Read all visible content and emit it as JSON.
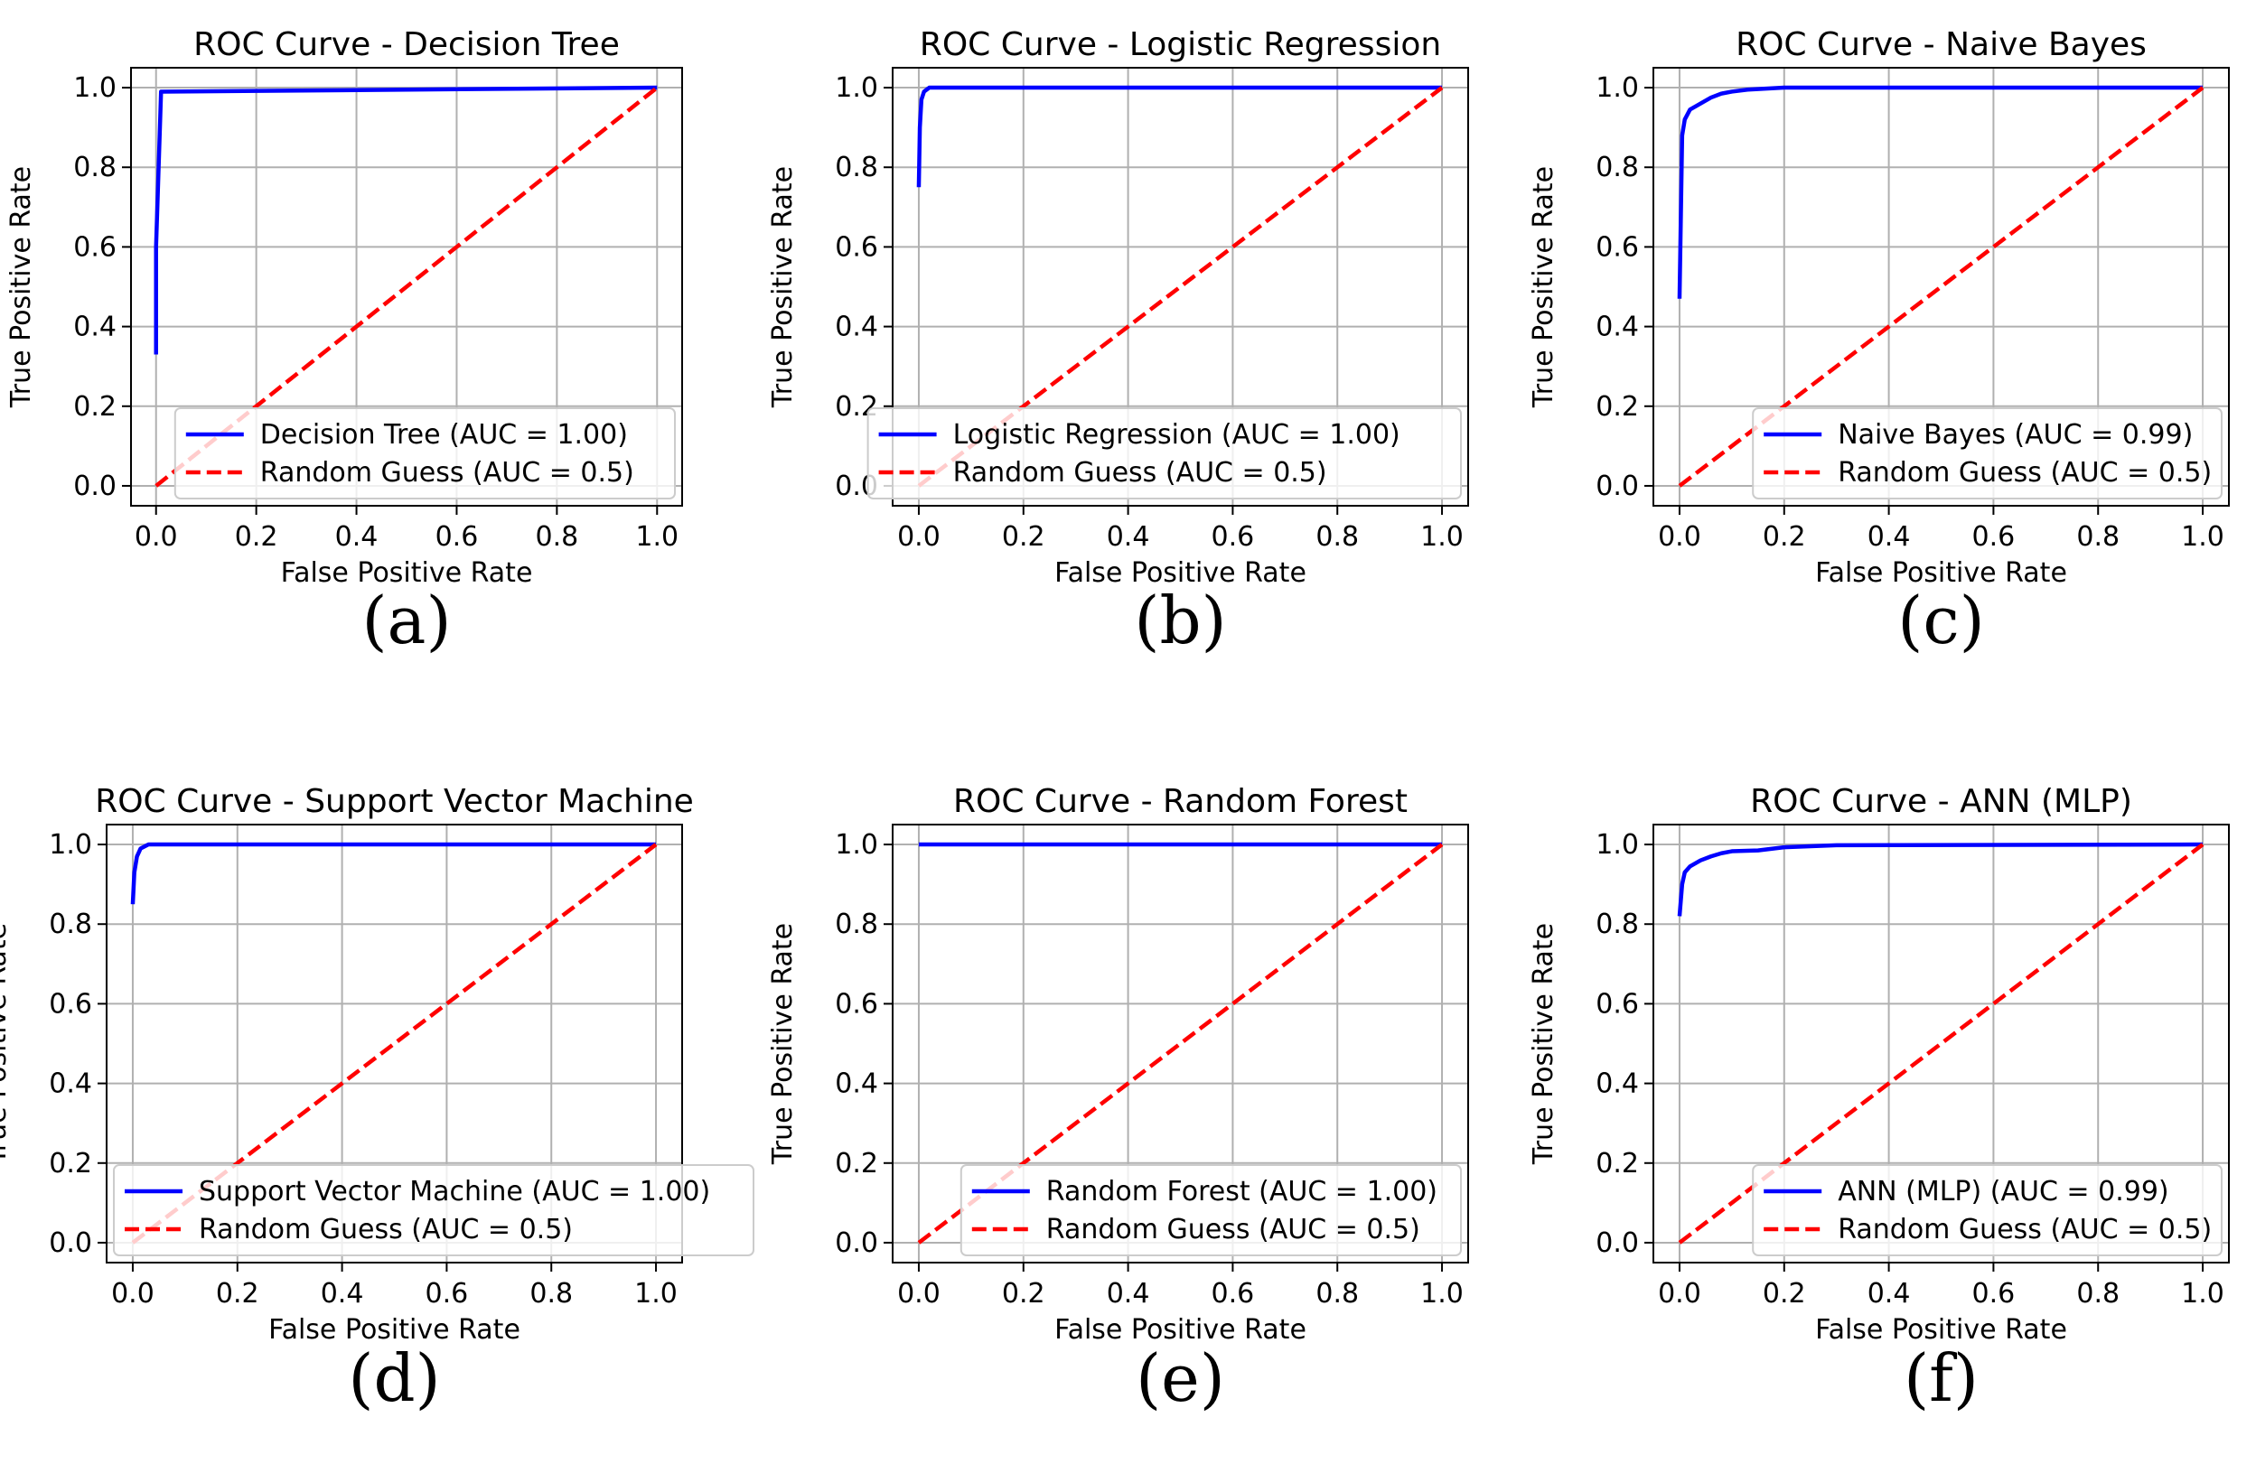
{
  "chart_data": [
    {
      "type": "line",
      "panel_label": "(a)",
      "title": "ROC Curve - Decision Tree",
      "xlabel": "False Positive Rate",
      "ylabel": "True Positive Rate",
      "xlim": [
        -0.05,
        1.05
      ],
      "ylim": [
        -0.05,
        1.05
      ],
      "xticks": [
        "0.0",
        "0.2",
        "0.4",
        "0.6",
        "0.8",
        "1.0"
      ],
      "yticks": [
        "0.0",
        "0.2",
        "0.4",
        "0.6",
        "0.8",
        "1.0"
      ],
      "grid": true,
      "legend_position": "lower-right",
      "series": [
        {
          "name": "Decision Tree (AUC = 1.00)",
          "color": "#0000ff",
          "style": "solid",
          "x": [
            0.0,
            0.0,
            0.01,
            0.01,
            1.0
          ],
          "y": [
            0.33,
            0.6,
            0.99,
            0.99,
            1.0
          ]
        },
        {
          "name": "Random Guess (AUC = 0.5)",
          "color": "#ff0000",
          "style": "dashed",
          "x": [
            0.0,
            1.0
          ],
          "y": [
            0.0,
            1.0
          ]
        }
      ]
    },
    {
      "type": "line",
      "panel_label": "(b)",
      "title": "ROC Curve - Logistic Regression",
      "xlabel": "False Positive Rate",
      "ylabel": "True Positive Rate",
      "xlim": [
        -0.05,
        1.05
      ],
      "ylim": [
        -0.05,
        1.05
      ],
      "xticks": [
        "0.0",
        "0.2",
        "0.4",
        "0.6",
        "0.8",
        "1.0"
      ],
      "yticks": [
        "0.0",
        "0.2",
        "0.4",
        "0.6",
        "0.8",
        "1.0"
      ],
      "grid": true,
      "legend_position": "lower-right",
      "series": [
        {
          "name": "Logistic Regression (AUC = 1.00)",
          "color": "#0000ff",
          "style": "solid",
          "x": [
            0.0,
            0.002,
            0.005,
            0.01,
            0.02,
            1.0
          ],
          "y": [
            0.75,
            0.9,
            0.97,
            0.99,
            1.0,
            1.0
          ]
        },
        {
          "name": "Random Guess (AUC = 0.5)",
          "color": "#ff0000",
          "style": "dashed",
          "x": [
            0.0,
            1.0
          ],
          "y": [
            0.0,
            1.0
          ]
        }
      ]
    },
    {
      "type": "line",
      "panel_label": "(c)",
      "title": "ROC Curve - Naive Bayes",
      "xlabel": "False Positive Rate",
      "ylabel": "True Positive Rate",
      "xlim": [
        -0.05,
        1.05
      ],
      "ylim": [
        -0.05,
        1.05
      ],
      "xticks": [
        "0.0",
        "0.2",
        "0.4",
        "0.6",
        "0.8",
        "1.0"
      ],
      "yticks": [
        "0.0",
        "0.2",
        "0.4",
        "0.6",
        "0.8",
        "1.0"
      ],
      "grid": true,
      "legend_position": "lower-right",
      "series": [
        {
          "name": "Naive Bayes (AUC = 0.99)",
          "color": "#0000ff",
          "style": "solid",
          "x": [
            0.0,
            0.005,
            0.01,
            0.02,
            0.04,
            0.06,
            0.08,
            0.1,
            0.13,
            0.2,
            0.4,
            1.0
          ],
          "y": [
            0.47,
            0.88,
            0.92,
            0.945,
            0.96,
            0.975,
            0.985,
            0.99,
            0.995,
            1.0,
            1.0,
            1.0
          ]
        },
        {
          "name": "Random Guess (AUC = 0.5)",
          "color": "#ff0000",
          "style": "dashed",
          "x": [
            0.0,
            1.0
          ],
          "y": [
            0.0,
            1.0
          ]
        }
      ]
    },
    {
      "type": "line",
      "panel_label": "(d)",
      "title": "ROC Curve - Support Vector Machine",
      "xlabel": "False Positive Rate",
      "ylabel": "True Positive Rate",
      "xlim": [
        -0.05,
        1.05
      ],
      "ylim": [
        -0.05,
        1.05
      ],
      "xticks": [
        "0.0",
        "0.2",
        "0.4",
        "0.6",
        "0.8",
        "1.0"
      ],
      "yticks": [
        "0.0",
        "0.2",
        "0.4",
        "0.6",
        "0.8",
        "1.0"
      ],
      "grid": true,
      "legend_position": "lower-left",
      "series": [
        {
          "name": "Support Vector Machine (AUC = 1.00)",
          "color": "#0000ff",
          "style": "solid",
          "x": [
            0.0,
            0.003,
            0.008,
            0.015,
            0.03,
            1.0
          ],
          "y": [
            0.85,
            0.93,
            0.97,
            0.99,
            1.0,
            1.0
          ]
        },
        {
          "name": "Random Guess (AUC = 0.5)",
          "color": "#ff0000",
          "style": "dashed",
          "x": [
            0.0,
            1.0
          ],
          "y": [
            0.0,
            1.0
          ]
        }
      ]
    },
    {
      "type": "line",
      "panel_label": "(e)",
      "title": "ROC Curve - Random Forest",
      "xlabel": "False Positive Rate",
      "ylabel": "True Positive Rate",
      "xlim": [
        -0.05,
        1.05
      ],
      "ylim": [
        -0.05,
        1.05
      ],
      "xticks": [
        "0.0",
        "0.2",
        "0.4",
        "0.6",
        "0.8",
        "1.0"
      ],
      "yticks": [
        "0.0",
        "0.2",
        "0.4",
        "0.6",
        "0.8",
        "1.0"
      ],
      "grid": true,
      "legend_position": "lower-right",
      "series": [
        {
          "name": "Random Forest (AUC = 1.00)",
          "color": "#0000ff",
          "style": "solid",
          "x": [
            0.0,
            1.0
          ],
          "y": [
            1.0,
            1.0
          ]
        },
        {
          "name": "Random Guess (AUC = 0.5)",
          "color": "#ff0000",
          "style": "dashed",
          "x": [
            0.0,
            1.0
          ],
          "y": [
            0.0,
            1.0
          ]
        }
      ]
    },
    {
      "type": "line",
      "panel_label": "(f)",
      "title": "ROC Curve - ANN (MLP)",
      "xlabel": "False Positive Rate",
      "ylabel": "True Positive Rate",
      "xlim": [
        -0.05,
        1.05
      ],
      "ylim": [
        -0.05,
        1.05
      ],
      "xticks": [
        "0.0",
        "0.2",
        "0.4",
        "0.6",
        "0.8",
        "1.0"
      ],
      "yticks": [
        "0.0",
        "0.2",
        "0.4",
        "0.6",
        "0.8",
        "1.0"
      ],
      "grid": true,
      "legend_position": "lower-right",
      "series": [
        {
          "name": "ANN (MLP) (AUC = 0.99)",
          "color": "#0000ff",
          "style": "solid",
          "x": [
            0.0,
            0.005,
            0.01,
            0.02,
            0.04,
            0.06,
            0.08,
            0.1,
            0.15,
            0.2,
            0.3,
            1.0
          ],
          "y": [
            0.82,
            0.9,
            0.93,
            0.945,
            0.96,
            0.97,
            0.978,
            0.983,
            0.985,
            0.993,
            0.998,
            1.0
          ]
        },
        {
          "name": "Random Guess (AUC = 0.5)",
          "color": "#ff0000",
          "style": "dashed",
          "x": [
            0.0,
            1.0
          ],
          "y": [
            0.0,
            1.0
          ]
        }
      ]
    }
  ]
}
